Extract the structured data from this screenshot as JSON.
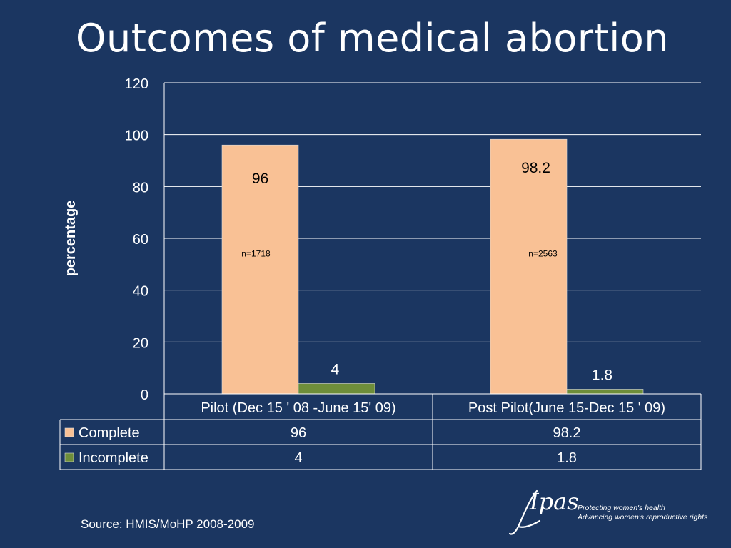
{
  "slide": {
    "title": "Outcomes of medical abortion",
    "source": "Source: HMIS/MoHP 2008-2009"
  },
  "logo": {
    "word": "Ipas",
    "tagline_1": "Protecting women's health",
    "tagline_2": "Advancing women's reproductive rights"
  },
  "chart_data": {
    "type": "bar",
    "categories": [
      "Pilot (Dec 15 ' 08 -June 15' 09)",
      "Post Pilot(June 15-Dec 15 ' 09)"
    ],
    "series": [
      {
        "name": "Complete",
        "values": [
          96,
          98.2
        ],
        "labels": [
          "96",
          "98.2"
        ],
        "color": "#f9c195"
      },
      {
        "name": "Incomplete",
        "values": [
          4,
          1.8
        ],
        "labels": [
          "4",
          "1.8"
        ],
        "color": "#6e8e3a"
      }
    ],
    "annotations": [
      "n=1718",
      "n=2563"
    ],
    "ylabel": "percentage",
    "ylim": [
      0,
      120
    ],
    "yticks": [
      0,
      20,
      40,
      60,
      80,
      100,
      120
    ],
    "grid": true,
    "legend": "data-table-left"
  },
  "colors": {
    "background": "#1b3661",
    "text": "#ffffff",
    "complete": "#f9c195",
    "incomplete": "#6e8e3a"
  }
}
